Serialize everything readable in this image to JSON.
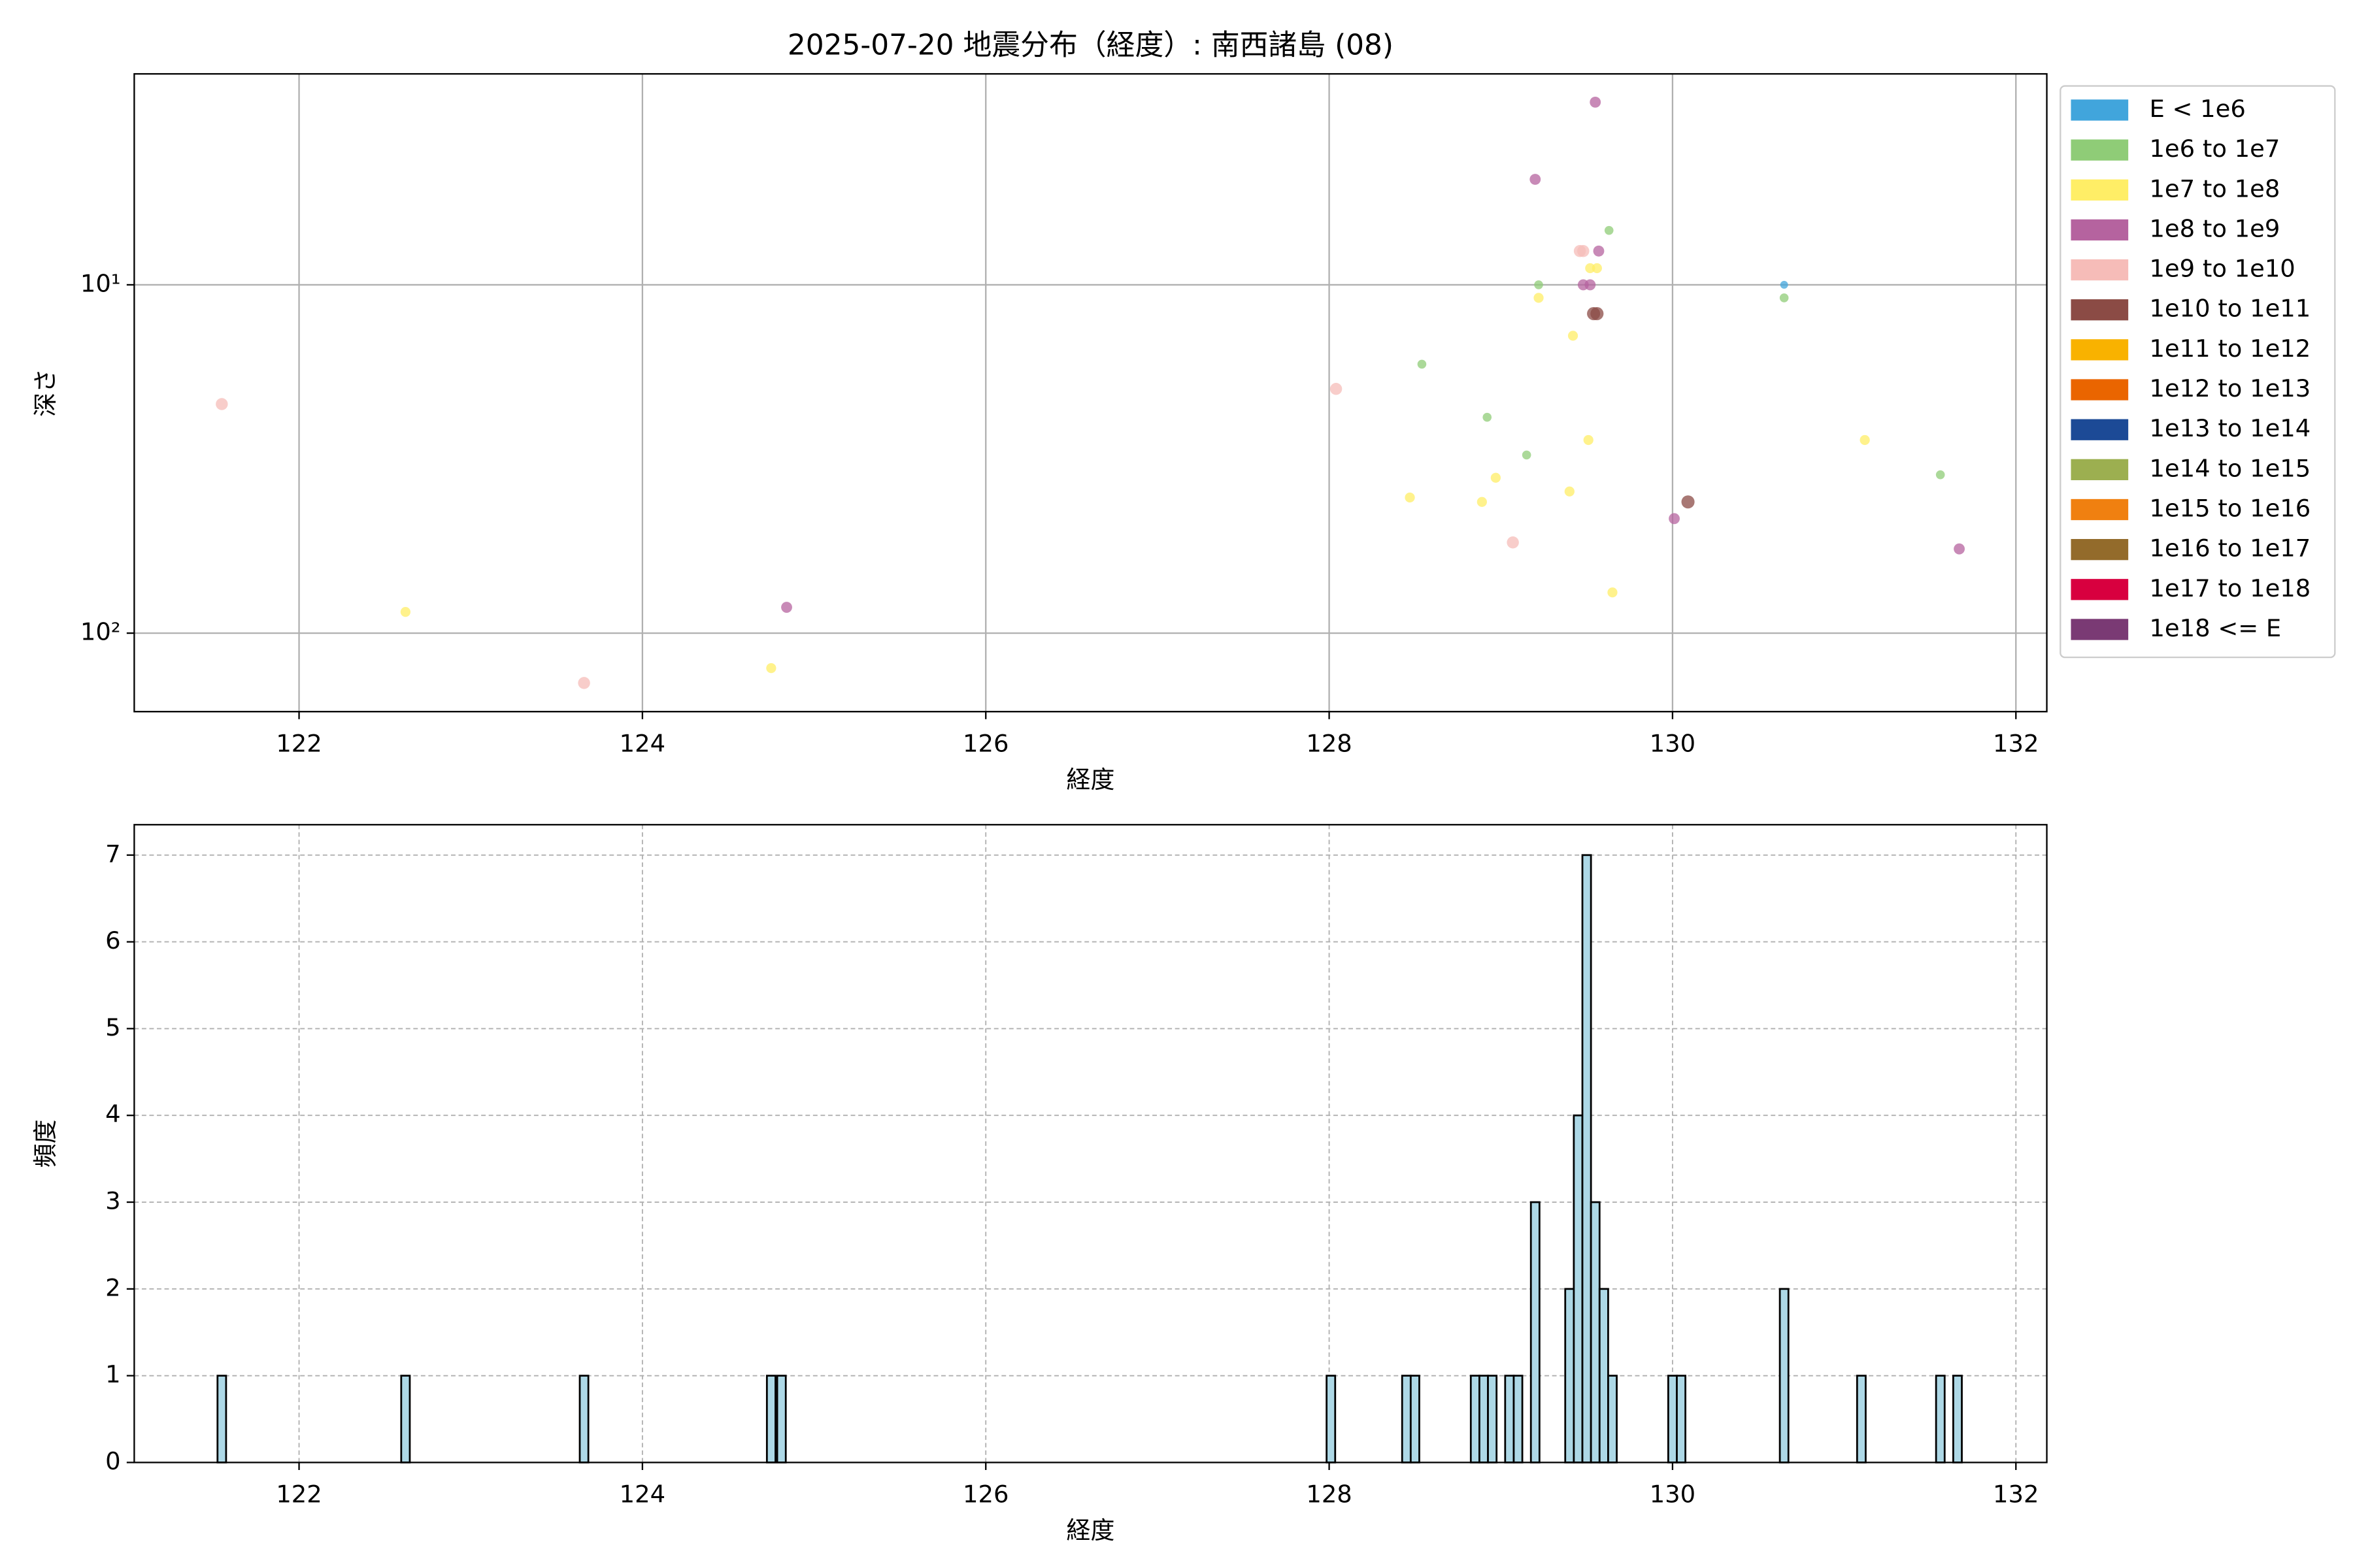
{
  "chart_data": [
    {
      "type": "scatter",
      "title": "2025-07-20 地震分布（経度）: 南西諸島 (08)",
      "x_label": "経度",
      "y_label": "深さ",
      "xlim": [
        121.04,
        132.18
      ],
      "xticks": [
        122,
        124,
        126,
        128,
        130,
        132
      ],
      "ylim": [
        2.48,
        168
      ],
      "y_log": true,
      "y_inverted": true,
      "yticks": [
        {
          "value": 10,
          "label": "10¹"
        },
        {
          "value": 100,
          "label": "10²"
        }
      ],
      "grid": true,
      "legend": "outside upper right",
      "series": [
        {
          "name": "E < 1e6",
          "color": "#41a5dc",
          "x": [
            130.65
          ],
          "values": [
            10
          ]
        },
        {
          "name": "1e6 to 1e7",
          "color": "#8fcc77",
          "x": [
            128.54,
            128.92,
            129.15,
            129.22,
            129.63,
            130.65,
            131.56
          ],
          "values": [
            16.9,
            24.0,
            30.8,
            10,
            6.98,
            10.9,
            35.1
          ]
        },
        {
          "name": "1e7 to 1e8",
          "color": "#ffee66",
          "x": [
            122.62,
            124.75,
            128.47,
            128.89,
            128.97,
            129.22,
            129.4,
            129.42,
            129.51,
            129.52,
            129.56,
            129.65,
            131.12
          ],
          "values": [
            86.9,
            126,
            40.8,
            42.0,
            35.8,
            10.9,
            39.2,
            14.0,
            27.9,
            8.96,
            8.96,
            76.4,
            27.9
          ]
        },
        {
          "name": "1e8 to 1e9",
          "color": "#b5639f",
          "x": [
            124.84,
            129.2,
            129.48,
            129.52,
            129.55,
            129.57,
            130.01,
            131.67
          ],
          "values": [
            84.3,
            4.98,
            10,
            10,
            2.99,
            8.0,
            46.9,
            57.3
          ]
        },
        {
          "name": "1e9 to 1e10",
          "color": "#f6bcb8",
          "x": [
            121.55,
            123.66,
            128.04,
            129.07,
            129.46,
            129.48
          ],
          "values": [
            22.0,
            139,
            19.9,
            54.9,
            8.0,
            8.0
          ]
        },
        {
          "name": "1e10 to 1e11",
          "color": "#8b4b45",
          "x": [
            129.54,
            129.56,
            130.09
          ],
          "values": [
            12.1,
            12.1,
            42.0
          ]
        },
        {
          "name": "1e11 to 1e12",
          "color": "#f9b200",
          "x": [],
          "values": []
        },
        {
          "name": "1e12 to 1e13",
          "color": "#ea6500",
          "x": [],
          "values": []
        },
        {
          "name": "1e13 to 1e14",
          "color": "#1c4a96",
          "x": [],
          "values": []
        },
        {
          "name": "1e14 to 1e15",
          "color": "#9caf50",
          "x": [],
          "values": []
        },
        {
          "name": "1e15 to 1e16",
          "color": "#f08010",
          "x": [],
          "values": []
        },
        {
          "name": "1e16 to 1e17",
          "color": "#936b2b",
          "x": [],
          "values": []
        },
        {
          "name": "1e17 to 1e18",
          "color": "#d8003f",
          "x": [],
          "values": []
        },
        {
          "name": "1e18 <= E",
          "color": "#7a3a74",
          "x": [],
          "values": []
        }
      ]
    },
    {
      "type": "histogram",
      "x_label": "経度",
      "y_label": "頻度",
      "color": "#add8e6",
      "xlim": [
        121.04,
        132.18
      ],
      "xticks": [
        122,
        124,
        126,
        128,
        130,
        132
      ],
      "ylim": [
        0,
        7.35
      ],
      "yticks": [
        0,
        1,
        2,
        3,
        4,
        5,
        6,
        7
      ],
      "grid": true,
      "bins": [
        121.525,
        121.575,
        122.595,
        122.645,
        123.635,
        123.685,
        124.725,
        124.775,
        124.785,
        124.835,
        127.985,
        128.035,
        128.425,
        128.475,
        128.525,
        128.825,
        128.875,
        128.925,
        128.975,
        129.025,
        129.075,
        129.125,
        129.175,
        129.225,
        129.375,
        129.425,
        129.475,
        129.525,
        129.575,
        129.625,
        129.675,
        129.975,
        130.025,
        130.075,
        130.625,
        130.675,
        131.075,
        131.125,
        131.535,
        131.585,
        131.635,
        131.685
      ],
      "values": [
        1,
        0,
        1,
        0,
        1,
        0,
        1,
        0,
        1,
        0,
        1,
        0,
        1,
        1,
        0,
        1,
        1,
        1,
        0,
        1,
        1,
        0,
        3,
        0,
        2,
        4,
        7,
        3,
        2,
        1,
        0,
        1,
        1,
        0,
        2,
        0,
        1,
        0,
        1,
        0,
        1
      ]
    }
  ]
}
